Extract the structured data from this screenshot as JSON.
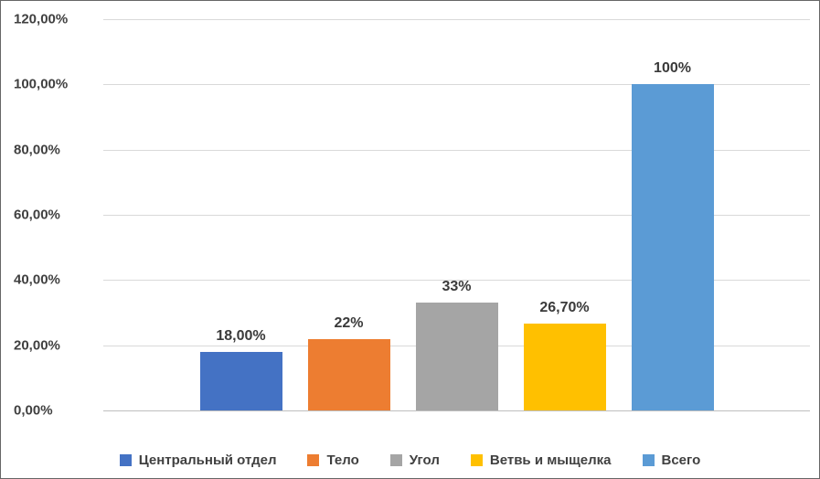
{
  "chart_data": {
    "type": "bar",
    "title": "",
    "xlabel": "",
    "ylabel": "",
    "grid": true,
    "legend_position": "bottom",
    "y_axis": {
      "min": 0,
      "max": 120,
      "step": 20,
      "ticks": [
        "120,00%",
        "100,00%",
        "80,00%",
        "60,00%",
        "40,00%",
        "20,00%",
        "0,00%"
      ]
    },
    "series": [
      {
        "name": "Центральный отдел",
        "value": 18.0,
        "label": "18,00%",
        "color": "#4472c4"
      },
      {
        "name": "Тело",
        "value": 22.0,
        "label": "22%",
        "color": "#ed7d31"
      },
      {
        "name": "Угол",
        "value": 33.0,
        "label": "33%",
        "color": "#a5a5a5"
      },
      {
        "name": "Ветвь и мыщелка",
        "value": 26.7,
        "label": "26,70%",
        "color": "#ffc000"
      },
      {
        "name": "Всего",
        "value": 100.0,
        "label": "100%",
        "color": "#5b9bd5"
      }
    ]
  }
}
